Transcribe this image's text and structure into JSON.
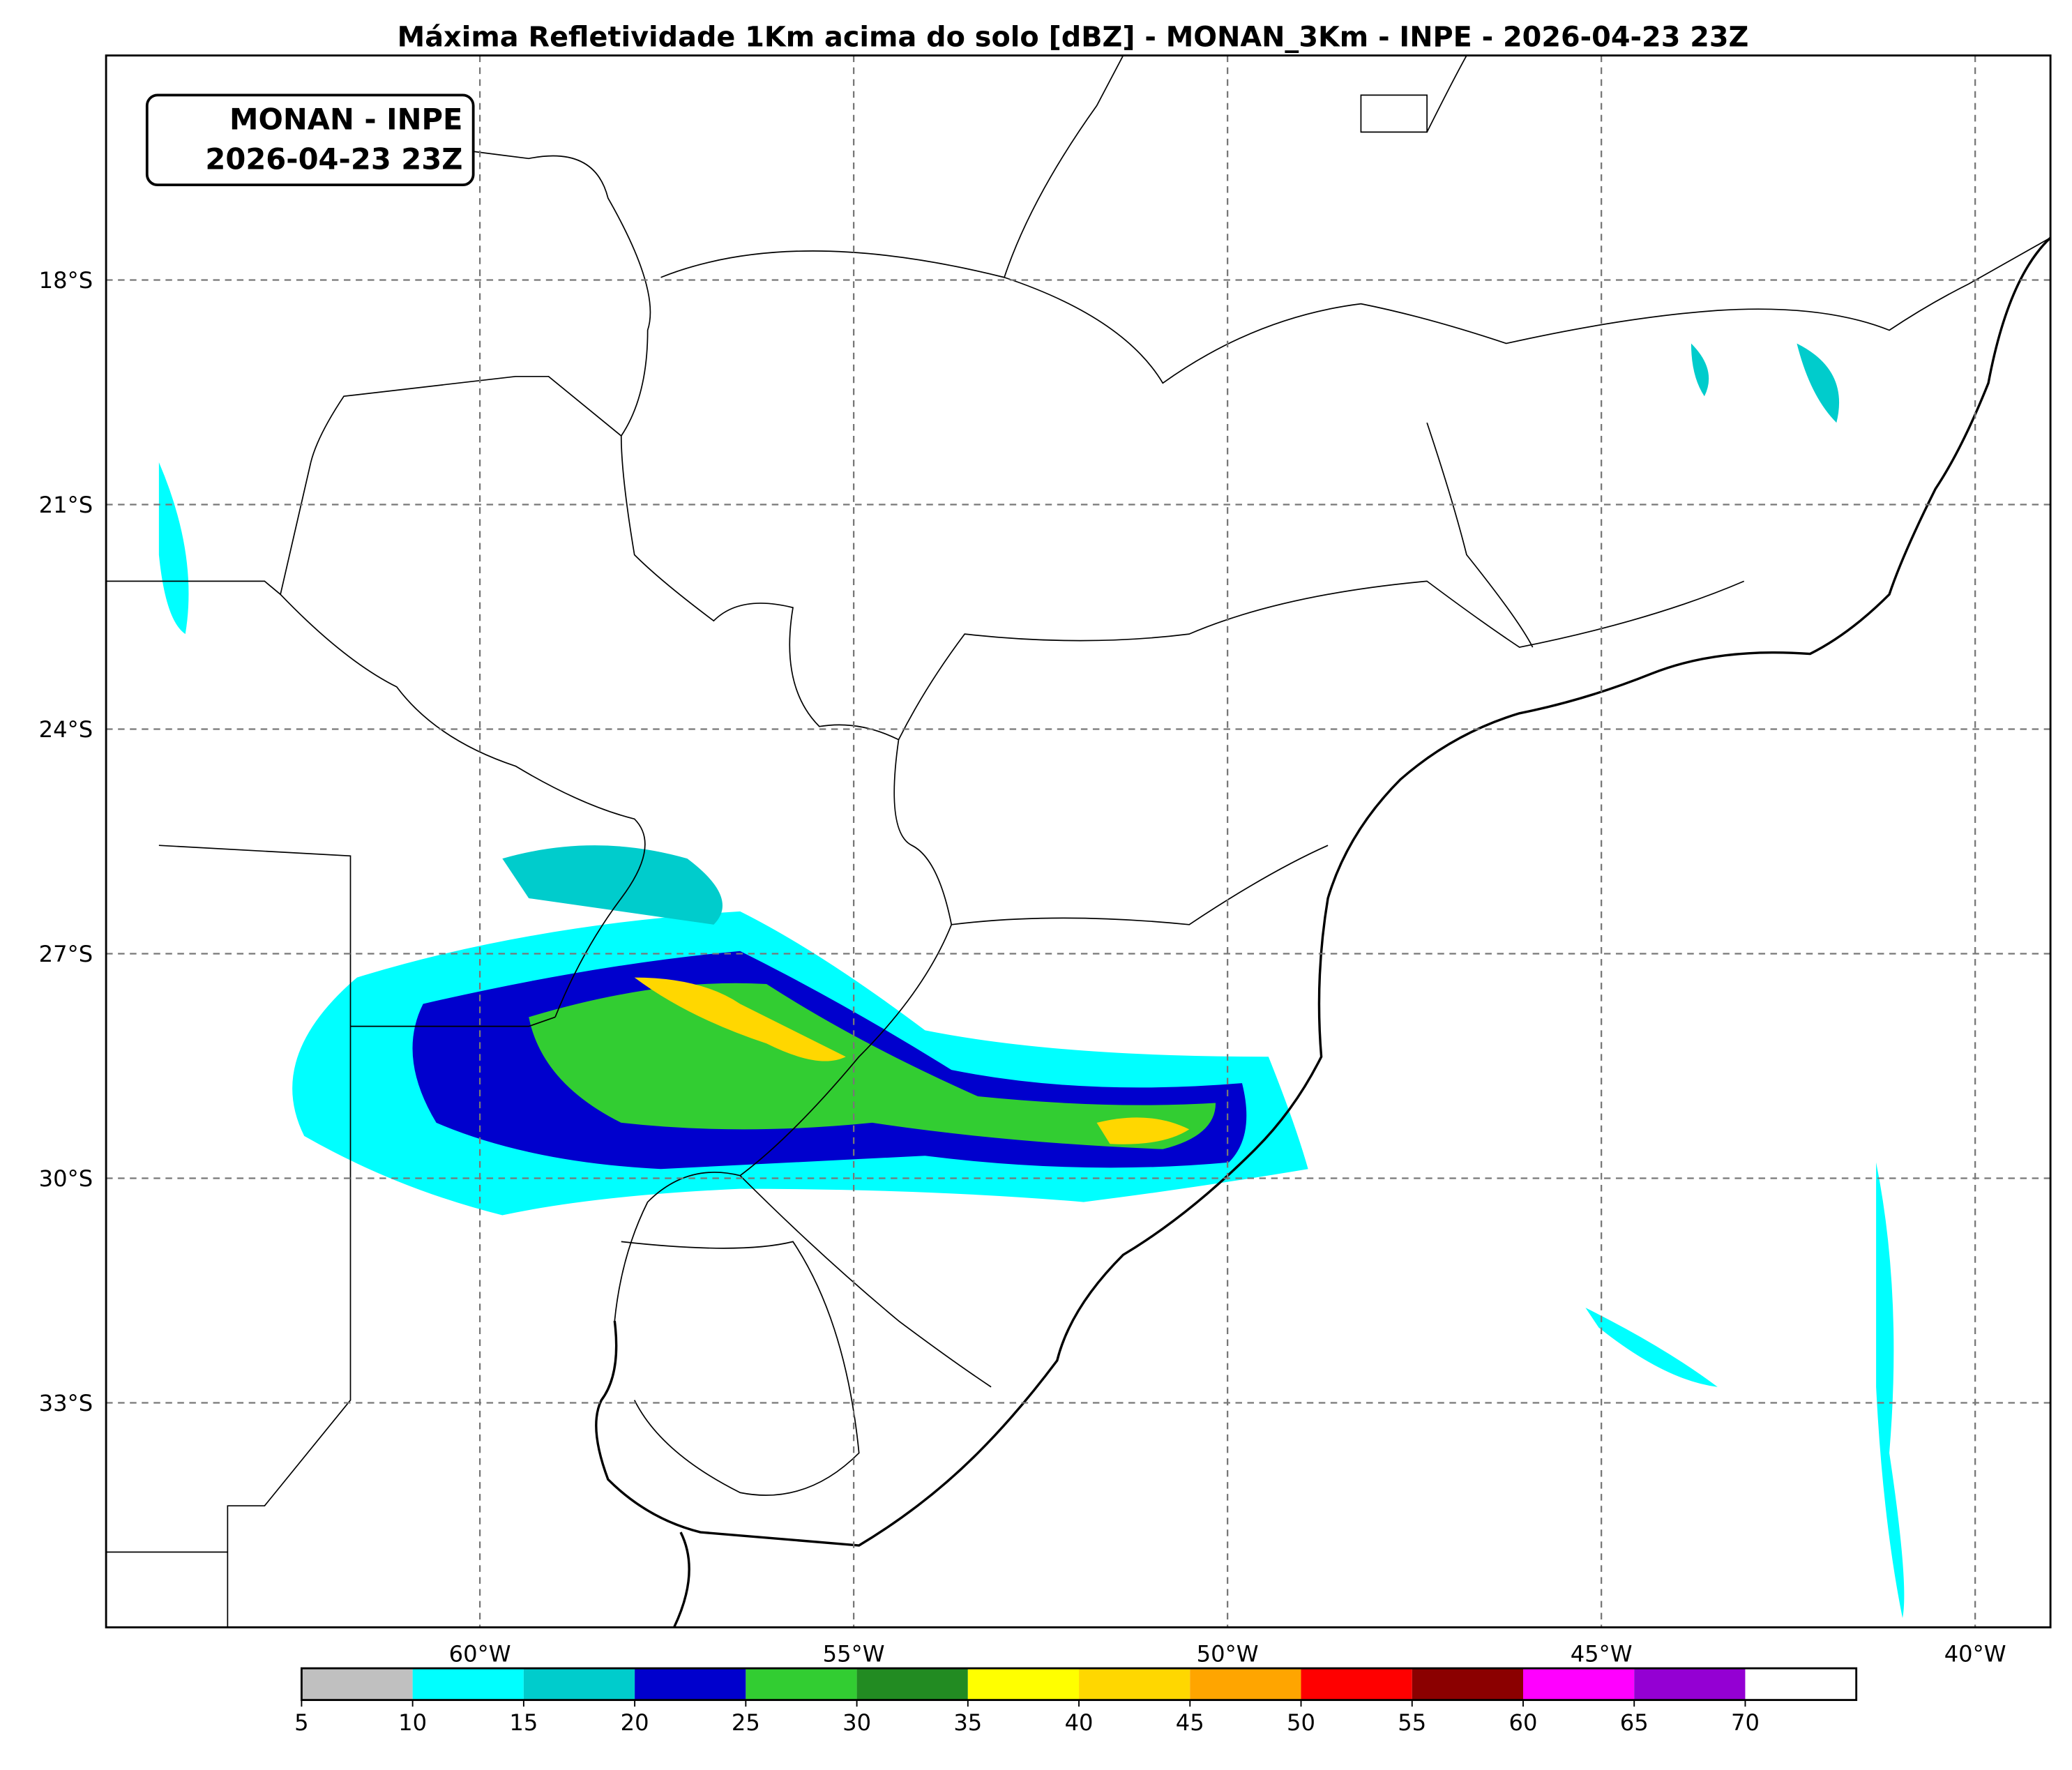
{
  "map": {
    "title": "Máxima Refletividade 1Km acima do solo [dBZ] - MONAN_3Km - INPE - 2026-04-23 23Z",
    "annotation": [
      "MONAN - INPE",
      "2026-04-23 23Z"
    ],
    "lat_labels": [
      "18°S",
      "21°S",
      "24°S",
      "27°S",
      "30°S",
      "33°S"
    ],
    "lon_labels": [
      "60°W",
      "55°W",
      "50°W",
      "45°W",
      "40°W"
    ]
  },
  "colorbar": {
    "lim": [
      5,
      75
    ],
    "ticks": [
      5,
      10,
      15,
      20,
      25,
      30,
      35,
      40,
      45,
      50,
      55,
      60,
      65,
      70
    ],
    "colors": [
      "#c0c0c0",
      "#00ffff",
      "#00cccc",
      "#0000cd",
      "#32cd32",
      "#228b22",
      "#ffff00",
      "#ffd700",
      "#ffa500",
      "#ff0000",
      "#8b0000",
      "#ff00ff",
      "#9400d3",
      "#ffffff"
    ]
  }
}
